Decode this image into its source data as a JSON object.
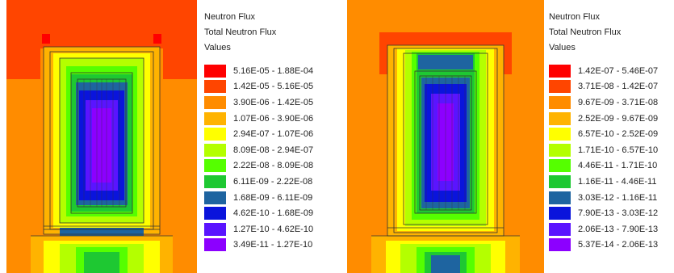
{
  "panels": [
    {
      "title_lines": [
        "Neutron Flux",
        "Total Neutron Flux",
        "Values"
      ],
      "legend": [
        {
          "label": "5.16E-05 - 1.88E-04",
          "color": "#ff0000"
        },
        {
          "label": "1.42E-05 - 5.16E-05",
          "color": "#ff4500"
        },
        {
          "label": "3.90E-06 - 1.42E-05",
          "color": "#ff8c00"
        },
        {
          "label": "1.07E-06 - 3.90E-06",
          "color": "#ffb300"
        },
        {
          "label": "2.94E-07 - 1.07E-06",
          "color": "#ffff00"
        },
        {
          "label": "8.09E-08 - 2.94E-07",
          "color": "#b4ff00"
        },
        {
          "label": "2.22E-08 - 8.09E-08",
          "color": "#55ff00"
        },
        {
          "label": "6.11E-09 - 2.22E-08",
          "color": "#1ec832"
        },
        {
          "label": "1.68E-09 - 6.11E-09",
          "color": "#1e64a0"
        },
        {
          "label": "4.62E-10 - 1.68E-09",
          "color": "#0a14dc"
        },
        {
          "label": "1.27E-10 - 4.62E-10",
          "color": "#5a14ff"
        },
        {
          "label": "3.49E-11 - 1.27E-10",
          "color": "#8c00ff"
        }
      ]
    },
    {
      "title_lines": [
        "Neutron Flux",
        "Total Neutron Flux",
        "Values"
      ],
      "legend": [
        {
          "label": "1.42E-07 - 5.46E-07",
          "color": "#ff0000"
        },
        {
          "label": "3.71E-08 - 1.42E-07",
          "color": "#ff4500"
        },
        {
          "label": "9.67E-09 - 3.71E-08",
          "color": "#ff8c00"
        },
        {
          "label": "2.52E-09 - 9.67E-09",
          "color": "#ffb300"
        },
        {
          "label": "6.57E-10 - 2.52E-09",
          "color": "#ffff00"
        },
        {
          "label": "1.71E-10 - 6.57E-10",
          "color": "#b4ff00"
        },
        {
          "label": "4.46E-11 - 1.71E-10",
          "color": "#55ff00"
        },
        {
          "label": "1.16E-11 - 4.46E-11",
          "color": "#1ec832"
        },
        {
          "label": "3.03E-12 - 1.16E-11",
          "color": "#1e64a0"
        },
        {
          "label": "7.90E-13 - 3.03E-12",
          "color": "#0a14dc"
        },
        {
          "label": "2.06E-13 - 7.90E-13",
          "color": "#5a14ff"
        },
        {
          "label": "5.37E-14 - 2.06E-13",
          "color": "#8c00ff"
        }
      ]
    }
  ]
}
